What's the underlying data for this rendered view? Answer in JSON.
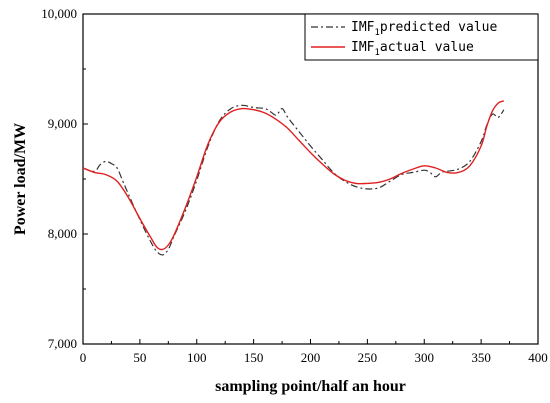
{
  "chart_data": {
    "type": "line",
    "xlabel": "sampling point/half an hour",
    "ylabel": "Power load/MW",
    "xlim": [
      0,
      400
    ],
    "ylim": [
      7000,
      10000
    ],
    "x_ticks": [
      "0",
      "50",
      "100",
      "150",
      "200",
      "250",
      "300",
      "350",
      "400"
    ],
    "y_ticks": [
      "7,000",
      "8,000",
      "9,000",
      "10,000"
    ],
    "grid": false,
    "legend_position": "top-right",
    "series": [
      {
        "name": "IMF1predicted value",
        "legend": {
          "main": "IMF",
          "sub": "1",
          "rest": "predicted value"
        },
        "color": "#333333",
        "style": "dash-dot",
        "x": [
          0,
          10,
          15,
          20,
          25,
          30,
          35,
          40,
          50,
          60,
          65,
          70,
          75,
          80,
          90,
          100,
          110,
          120,
          130,
          140,
          150,
          160,
          165,
          170,
          175,
          180,
          190,
          200,
          210,
          220,
          230,
          240,
          250,
          260,
          270,
          280,
          290,
          300,
          305,
          310,
          315,
          320,
          330,
          340,
          350,
          355,
          360,
          365,
          370
        ],
        "y": [
          8600,
          8570,
          8630,
          8660,
          8640,
          8600,
          8480,
          8360,
          8130,
          7920,
          7840,
          7810,
          7860,
          7980,
          8210,
          8490,
          8800,
          9030,
          9140,
          9170,
          9150,
          9140,
          9110,
          9080,
          9140,
          9060,
          8930,
          8800,
          8680,
          8560,
          8480,
          8430,
          8410,
          8420,
          8480,
          8540,
          8560,
          8580,
          8560,
          8520,
          8560,
          8570,
          8590,
          8660,
          8840,
          8990,
          9090,
          9060,
          9130
        ]
      },
      {
        "name": "IMF1actual value",
        "legend": {
          "main": "IMF",
          "sub": "1",
          "rest": "actual value"
        },
        "color": "#e02020",
        "style": "solid",
        "x": [
          0,
          10,
          20,
          30,
          40,
          50,
          60,
          65,
          70,
          75,
          80,
          90,
          100,
          110,
          120,
          130,
          140,
          150,
          160,
          170,
          180,
          190,
          200,
          210,
          220,
          230,
          240,
          250,
          260,
          270,
          280,
          290,
          300,
          310,
          320,
          330,
          340,
          350,
          355,
          360,
          365,
          370
        ],
        "y": [
          8600,
          8560,
          8540,
          8480,
          8330,
          8140,
          7960,
          7880,
          7860,
          7900,
          7990,
          8240,
          8520,
          8820,
          9020,
          9110,
          9140,
          9130,
          9100,
          9040,
          8960,
          8850,
          8740,
          8640,
          8550,
          8490,
          8460,
          8460,
          8470,
          8500,
          8550,
          8590,
          8620,
          8600,
          8560,
          8560,
          8620,
          8800,
          8980,
          9120,
          9190,
          9210
        ]
      }
    ]
  }
}
